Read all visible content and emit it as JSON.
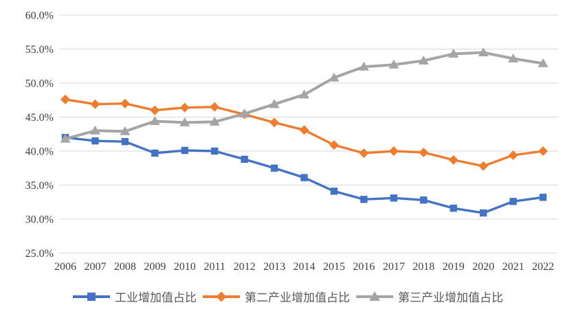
{
  "chart_data": {
    "type": "line",
    "title": "",
    "xlabel": "",
    "ylabel": "",
    "x": [
      "2006",
      "2007",
      "2008",
      "2009",
      "2010",
      "2011",
      "2012",
      "2013",
      "2014",
      "2015",
      "2016",
      "2017",
      "2018",
      "2019",
      "2020",
      "2021",
      "2022"
    ],
    "ylim": [
      25,
      60
    ],
    "grid": true,
    "legend_position": "bottom",
    "y_ticks": [
      60,
      55,
      50,
      45,
      40,
      35,
      30,
      25
    ],
    "y_tick_labels": [
      "60.0%",
      "55.0%",
      "50.0%",
      "45.0%",
      "40.0%",
      "35.0%",
      "30.0%",
      "25.0%"
    ],
    "series": [
      {
        "name": "工业增加值占比",
        "marker": "square",
        "color": "#4472C4",
        "values": [
          42.0,
          41.5,
          41.4,
          39.7,
          40.1,
          40.0,
          38.8,
          37.5,
          36.1,
          34.1,
          32.9,
          33.1,
          32.8,
          31.6,
          30.9,
          32.6,
          33.2
        ]
      },
      {
        "name": "第二产业增加值占比",
        "marker": "diamond",
        "color": "#ED7D31",
        "values": [
          47.6,
          46.9,
          47.0,
          46.0,
          46.4,
          46.5,
          45.4,
          44.2,
          43.1,
          40.9,
          39.7,
          40.0,
          39.8,
          38.7,
          37.8,
          39.4,
          40.0
        ]
      },
      {
        "name": "第三产业增加值占比",
        "marker": "triangle",
        "color": "#A5A5A5",
        "values": [
          41.8,
          43.0,
          42.9,
          44.4,
          44.2,
          44.3,
          45.5,
          46.9,
          48.3,
          50.8,
          52.4,
          52.7,
          53.3,
          54.3,
          54.5,
          53.6,
          52.9
        ]
      }
    ],
    "colors": {
      "gridline": "#D9D9D9",
      "axis_text": "#404040",
      "legend_text": "#595959",
      "background": "#FFFFFF"
    }
  }
}
